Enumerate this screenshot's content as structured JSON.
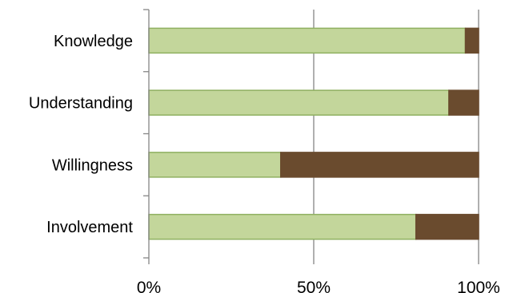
{
  "chart_data": {
    "type": "bar",
    "orientation": "horizontal",
    "stacked": true,
    "percent": true,
    "categories": [
      "Knowledge",
      "Understanding",
      "Willingness",
      "Involvement"
    ],
    "series": [
      {
        "color": "#c3d69b",
        "border": "#8fb060",
        "values": [
          96,
          91,
          40,
          81
        ]
      },
      {
        "color": "#6a4b2e",
        "border": "#6a4b2e",
        "values": [
          4,
          9,
          60,
          19
        ]
      }
    ],
    "xlim": [
      0,
      100
    ],
    "x_ticks": [
      0,
      50,
      100
    ],
    "x_tick_labels": [
      "0%",
      "50%",
      "100%"
    ],
    "grid": true,
    "legend": "none"
  }
}
